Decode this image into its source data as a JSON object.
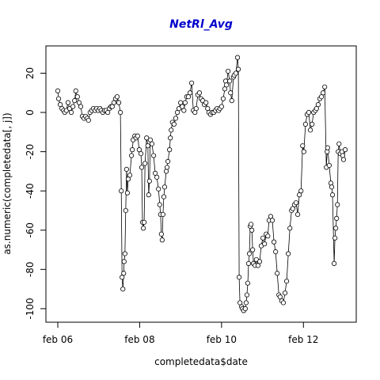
{
  "chart_data": {
    "type": "line",
    "title": "NetRl_Avg",
    "xlabel": "completedata$date",
    "ylabel": "as.numeric(completedata[, j])",
    "color": "#000000",
    "title_color": "#0000cc",
    "x": [
      6.0,
      6.02,
      6.06,
      6.1,
      6.14,
      6.17,
      6.21,
      6.25,
      6.29,
      6.33,
      6.37,
      6.41,
      6.44,
      6.48,
      6.52,
      6.56,
      6.6,
      6.64,
      6.68,
      6.72,
      6.75,
      6.79,
      6.83,
      6.87,
      6.91,
      6.95,
      6.99,
      7.03,
      7.06,
      7.1,
      7.14,
      7.18,
      7.22,
      7.26,
      7.3,
      7.33,
      7.37,
      7.41,
      7.45,
      7.49,
      7.53,
      7.55,
      7.57,
      7.59,
      7.61,
      7.62,
      7.64,
      7.66,
      7.68,
      7.7,
      7.72,
      7.76,
      7.8,
      7.82,
      7.84,
      7.88,
      7.91,
      7.95,
      7.99,
      8.03,
      8.05,
      8.07,
      8.09,
      8.11,
      8.13,
      8.17,
      8.2,
      8.22,
      8.24,
      8.26,
      8.3,
      8.34,
      8.38,
      8.42,
      8.46,
      8.49,
      8.51,
      8.53,
      8.55,
      8.57,
      8.59,
      8.61,
      8.65,
      8.67,
      8.69,
      8.73,
      8.75,
      8.77,
      8.8,
      8.84,
      8.88,
      8.92,
      8.96,
      9.0,
      9.04,
      9.08,
      9.11,
      9.15,
      9.19,
      9.23,
      9.27,
      9.31,
      9.35,
      9.38,
      9.42,
      9.46,
      9.5,
      9.54,
      9.58,
      9.62,
      9.66,
      9.69,
      9.73,
      9.77,
      9.81,
      9.85,
      9.89,
      9.93,
      9.96,
      10.0,
      10.04,
      10.08,
      10.1,
      10.12,
      10.16,
      10.2,
      10.22,
      10.25,
      10.29,
      10.31,
      10.35,
      10.39,
      10.41,
      10.43,
      10.45,
      10.49,
      10.51,
      10.54,
      10.58,
      10.6,
      10.62,
      10.64,
      10.66,
      10.68,
      10.7,
      10.72,
      10.74,
      10.76,
      10.78,
      10.82,
      10.85,
      10.89,
      10.93,
      10.97,
      11.01,
      11.05,
      11.09,
      11.13,
      11.16,
      11.2,
      11.24,
      11.28,
      11.32,
      11.36,
      11.4,
      11.43,
      11.47,
      11.51,
      11.55,
      11.59,
      11.63,
      11.67,
      11.71,
      11.74,
      11.78,
      11.82,
      11.86,
      11.9,
      11.94,
      11.98,
      12.01,
      12.05,
      12.09,
      12.13,
      12.17,
      12.21,
      12.25,
      12.29,
      12.32,
      12.36,
      12.4,
      12.44,
      12.48,
      12.52,
      12.56,
      12.58,
      12.59,
      12.63,
      12.67,
      12.69,
      12.71,
      12.75,
      12.77,
      12.79,
      12.81,
      12.83,
      12.85,
      12.87,
      12.9,
      12.94,
      12.96,
      12.98,
      13.02
    ],
    "values": [
      11,
      7,
      4,
      2,
      1,
      0,
      1,
      5,
      2,
      0,
      3,
      6,
      11,
      8,
      5,
      3,
      -2,
      -3,
      -2,
      -3,
      -4,
      0,
      1,
      2,
      1,
      2,
      1,
      2,
      1,
      0,
      1,
      1,
      0,
      2,
      3,
      3,
      5,
      7,
      8,
      5,
      0,
      -40,
      -84,
      -90,
      -82,
      -76,
      -72,
      -50,
      -29,
      -41,
      -34,
      -32,
      -22,
      -19,
      -14,
      -12,
      -13,
      -12,
      -19,
      -21,
      -28,
      -56,
      -59,
      -56,
      -26,
      -13,
      -17,
      -42,
      -35,
      -14,
      -16,
      -22,
      -31,
      -33,
      -39,
      -47,
      -52,
      -62,
      -65,
      -52,
      -43,
      -38,
      -30,
      -28,
      -25,
      -19,
      -13,
      -9,
      -5,
      -6,
      -3,
      0,
      2,
      5,
      3,
      1,
      5,
      8,
      8,
      10,
      15,
      1,
      0,
      2,
      9,
      10,
      7,
      6,
      4,
      5,
      2,
      0,
      -1,
      0,
      0,
      1,
      2,
      1,
      2,
      3,
      7,
      12,
      16,
      14,
      21,
      16,
      10,
      6,
      18,
      19,
      20,
      28,
      22,
      -84,
      -97,
      -99,
      -100,
      -101,
      -100,
      -97,
      -93,
      -87,
      -77,
      -72,
      -58,
      -57,
      -60,
      -70,
      -77,
      -78,
      -75,
      -78,
      -76,
      -68,
      -64,
      -67,
      -62,
      -63,
      -55,
      -53,
      -55,
      -66,
      -71,
      -82,
      -93,
      -94,
      -96,
      -97,
      -92,
      -86,
      -72,
      -59,
      -50,
      -49,
      -47,
      -46,
      -52,
      -42,
      -40,
      -17,
      -20,
      -6,
      -1,
      0,
      -9,
      -6,
      0,
      1,
      2,
      4,
      7,
      8,
      10,
      13,
      -28,
      -20,
      -18,
      -27,
      -36,
      -38,
      -42,
      -77,
      -64,
      -59,
      -54,
      -47,
      -20,
      -16,
      -21,
      -20,
      -22,
      -24,
      -19
    ],
    "xlim": [
      5.71,
      13.29
    ],
    "xticks": [
      {
        "value": 6,
        "label": "feb 06"
      },
      {
        "value": 8,
        "label": "feb 08"
      },
      {
        "value": 10,
        "label": "feb 10"
      },
      {
        "value": 12,
        "label": "feb 12"
      }
    ],
    "ylim": [
      -106.9,
      33.9
    ],
    "yticks": [
      -100,
      -80,
      -60,
      -40,
      -20,
      0,
      20
    ]
  }
}
